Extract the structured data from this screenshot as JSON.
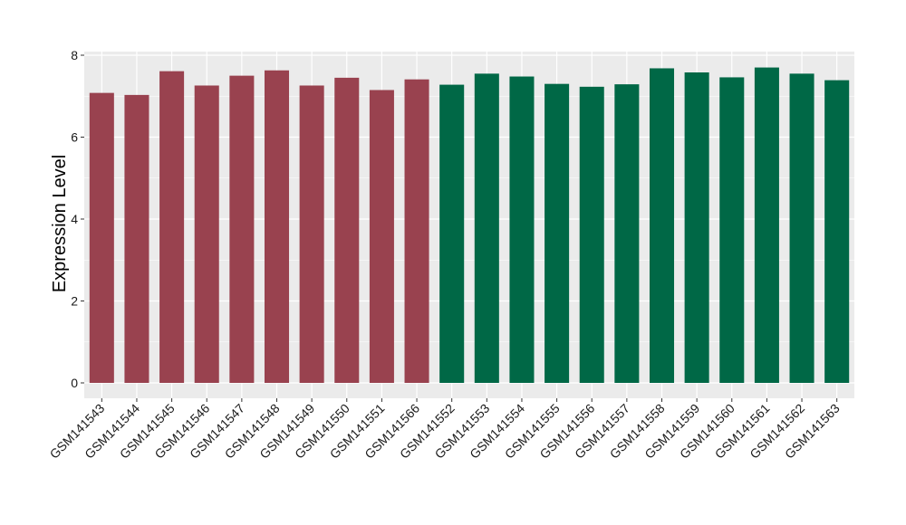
{
  "chart_data": {
    "type": "bar",
    "title": "",
    "xlabel": "",
    "ylabel": "Expression Level",
    "ylim": [
      0,
      8
    ],
    "yticks": [
      0,
      2,
      4,
      6,
      8
    ],
    "grid": true,
    "legend": "none",
    "colors": {
      "panel_background": "#EBEBEB",
      "grid_major": "#FFFFFF",
      "group_a": "#99424F",
      "group_b": "#006846"
    },
    "categories": [
      "GSM141543",
      "GSM141544",
      "GSM141545",
      "GSM141546",
      "GSM141547",
      "GSM141548",
      "GSM141549",
      "GSM141550",
      "GSM141551",
      "GSM141566",
      "GSM141552",
      "GSM141553",
      "GSM141554",
      "GSM141555",
      "GSM141556",
      "GSM141557",
      "GSM141558",
      "GSM141559",
      "GSM141560",
      "GSM141561",
      "GSM141562",
      "GSM141563"
    ],
    "values": [
      7.08,
      7.03,
      7.61,
      7.26,
      7.5,
      7.63,
      7.26,
      7.45,
      7.15,
      7.41,
      7.28,
      7.55,
      7.48,
      7.3,
      7.23,
      7.29,
      7.68,
      7.58,
      7.46,
      7.7,
      7.55,
      7.39
    ],
    "bar_colors": [
      "#99424F",
      "#99424F",
      "#99424F",
      "#99424F",
      "#99424F",
      "#99424F",
      "#99424F",
      "#99424F",
      "#99424F",
      "#99424F",
      "#006846",
      "#006846",
      "#006846",
      "#006846",
      "#006846",
      "#006846",
      "#006846",
      "#006846",
      "#006846",
      "#006846",
      "#006846",
      "#006846"
    ]
  }
}
